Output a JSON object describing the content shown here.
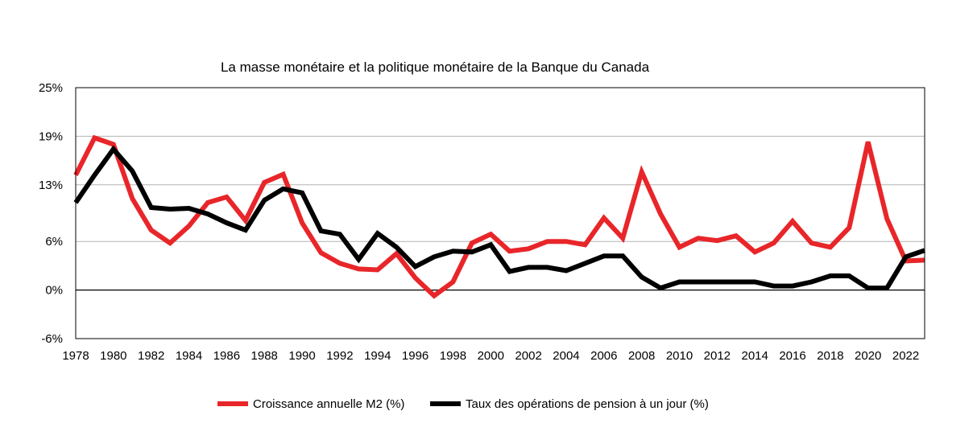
{
  "chart_data": {
    "type": "line",
    "title": "La masse monétaire et la politique monétaire de la Banque du Canada",
    "xlabel": "",
    "ylabel": "",
    "x": [
      1978,
      1979,
      1980,
      1981,
      1982,
      1983,
      1984,
      1985,
      1986,
      1987,
      1988,
      1989,
      1990,
      1991,
      1992,
      1993,
      1994,
      1995,
      1996,
      1997,
      1998,
      1999,
      2000,
      2001,
      2002,
      2003,
      2004,
      2005,
      2006,
      2007,
      2008,
      2009,
      2010,
      2011,
      2012,
      2013,
      2014,
      2015,
      2016,
      2017,
      2018,
      2019,
      2020,
      2021,
      2022,
      2023
    ],
    "xlim": [
      1978,
      2023
    ],
    "xticks": [
      "1978",
      "1980",
      "1982",
      "1984",
      "1986",
      "1988",
      "1990",
      "1992",
      "1994",
      "1996",
      "1998",
      "2000",
      "2002",
      "2004",
      "2006",
      "2008",
      "2010",
      "2012",
      "2014",
      "2016",
      "2018",
      "2020",
      "2022"
    ],
    "ylim": [
      -6,
      25
    ],
    "yticks": [
      -6,
      0,
      6,
      13,
      19,
      25
    ],
    "yticklabels": [
      "-6%",
      "0%",
      "6%",
      "13%",
      "19%",
      "25%"
    ],
    "grid": true,
    "legend": "bottom",
    "series": [
      {
        "name": "Croissance annuelle M2 (%)",
        "color": "#e8262a",
        "values": [
          14.2,
          18.8,
          18.0,
          11.3,
          7.4,
          5.8,
          7.9,
          10.8,
          11.5,
          8.6,
          13.3,
          14.3,
          8.3,
          4.6,
          3.3,
          2.6,
          2.5,
          4.5,
          1.5,
          -0.7,
          1.0,
          5.8,
          6.9,
          4.8,
          5.1,
          6.0,
          6.0,
          5.6,
          8.9,
          6.4,
          14.6,
          9.4,
          5.3,
          6.4,
          6.1,
          6.7,
          4.7,
          5.8,
          8.5,
          5.8,
          5.3,
          7.7,
          18.3,
          8.8,
          3.6,
          3.7
        ]
      },
      {
        "name": "Taux des opérations de pension à un jour (%)",
        "color": "#000000",
        "values": [
          10.8,
          14.2,
          17.4,
          14.7,
          10.2,
          10.0,
          10.1,
          9.4,
          8.3,
          7.4,
          11.1,
          12.5,
          12.0,
          7.3,
          6.9,
          3.8,
          7.0,
          5.3,
          2.9,
          4.1,
          4.8,
          4.7,
          5.6,
          2.3,
          2.8,
          2.8,
          2.4,
          3.3,
          4.2,
          4.2,
          1.6,
          0.25,
          1.0,
          1.0,
          1.0,
          1.0,
          1.0,
          0.5,
          0.5,
          1.0,
          1.75,
          1.75,
          0.25,
          0.25,
          4.1,
          4.9
        ]
      }
    ]
  }
}
